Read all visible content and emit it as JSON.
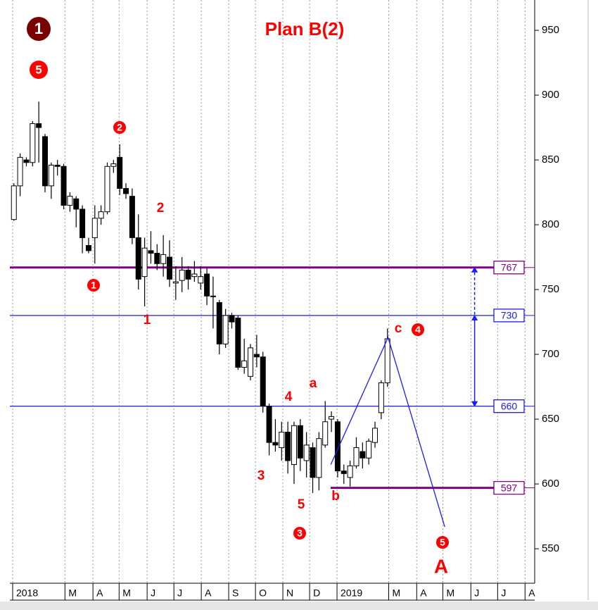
{
  "chart_data": {
    "type": "candlestick",
    "title": "Plan B(2)",
    "candles": {
      "open": [
        804,
        830,
        850,
        848,
        878,
        868,
        830,
        846,
        845,
        815,
        820,
        812,
        784,
        790,
        805,
        810,
        845,
        852,
        828,
        822,
        790,
        760,
        780,
        778,
        770,
        775,
        755,
        757,
        765,
        760,
        755,
        762,
        745,
        740,
        708,
        730,
        728,
        690,
        683,
        700,
        698,
        660,
        632,
        628,
        640,
        615,
        645,
        618,
        628,
        605,
        630,
        650,
        648,
        610,
        605,
        614,
        625,
        620,
        632,
        655,
        678
      ],
      "high": [
        832,
        855,
        852,
        880,
        895,
        870,
        848,
        850,
        847,
        825,
        822,
        815,
        790,
        815,
        815,
        848,
        850,
        862,
        832,
        828,
        808,
        790,
        795,
        785,
        792,
        788,
        768,
        775,
        768,
        772,
        768,
        767,
        760,
        742,
        735,
        732,
        730,
        712,
        708,
        715,
        702,
        662,
        650,
        648,
        648,
        648,
        650,
        640,
        632,
        640,
        664,
        656,
        650,
        615,
        618,
        636,
        632,
        635,
        648,
        680,
        720
      ],
      "low": [
        803,
        822,
        845,
        845,
        848,
        825,
        820,
        838,
        812,
        810,
        798,
        778,
        778,
        770,
        800,
        808,
        840,
        823,
        820,
        785,
        750,
        737,
        770,
        765,
        760,
        752,
        742,
        748,
        750,
        756,
        750,
        738,
        720,
        700,
        705,
        720,
        688,
        685,
        680,
        690,
        655,
        622,
        625,
        618,
        608,
        600,
        610,
        605,
        593,
        595,
        628,
        640,
        605,
        600,
        598,
        612,
        612,
        615,
        628,
        650,
        675
      ],
      "close": [
        830,
        852,
        848,
        878,
        875,
        830,
        846,
        845,
        815,
        822,
        812,
        790,
        780,
        805,
        810,
        845,
        847,
        828,
        824,
        790,
        758,
        782,
        778,
        770,
        777,
        758,
        756,
        765,
        758,
        762,
        760,
        745,
        745,
        708,
        730,
        725,
        690,
        695,
        705,
        698,
        660,
        632,
        630,
        640,
        618,
        645,
        620,
        630,
        605,
        635,
        648,
        652,
        610,
        608,
        614,
        628,
        620,
        633,
        643,
        678,
        712
      ]
    },
    "ylim": [
      523.4,
      973.4
    ],
    "yticks": [
      550,
      600,
      650,
      700,
      750,
      800,
      850,
      900,
      950
    ],
    "xlim": [
      -0.45,
      83.85
    ],
    "xticks": [
      {
        "value": 0,
        "label": "2018"
      },
      {
        "value": 8.4,
        "label": "M"
      },
      {
        "value": 12.9,
        "label": "A"
      },
      {
        "value": 17.1,
        "label": "M"
      },
      {
        "value": 21.6,
        "label": "J"
      },
      {
        "value": 25.9,
        "label": "J"
      },
      {
        "value": 30.3,
        "label": "A"
      },
      {
        "value": 34.7,
        "label": "S"
      },
      {
        "value": 39,
        "label": "O"
      },
      {
        "value": 43.4,
        "label": "N"
      },
      {
        "value": 47.7,
        "label": "D"
      },
      {
        "value": 52.1,
        "label": "2019"
      },
      {
        "value": 60.4,
        "label": "M"
      },
      {
        "value": 64.9,
        "label": "A"
      },
      {
        "value": 69.1,
        "label": "M"
      },
      {
        "value": 73.6,
        "label": "J"
      },
      {
        "value": 77.9,
        "label": "J"
      },
      {
        "value": 82.3,
        "label": "A"
      }
    ],
    "levels": [
      {
        "value": 767,
        "color": "#800080"
      },
      {
        "value": 730,
        "color": "#1a1aff"
      },
      {
        "value": 660,
        "color": "#1a1aff"
      },
      {
        "value": 597,
        "color": "#800080"
      }
    ],
    "wave": {
      "x": [
        51.1,
        60.3,
        69.4
      ],
      "y": [
        615,
        713,
        567
      ],
      "color": "#1a1aff"
    },
    "arrow": {
      "x": 74.2,
      "y": [
        767,
        730,
        660
      ],
      "color": "#1a1aff"
    },
    "annotations": [
      "1",
      "5",
      "2",
      "2",
      "1",
      "1",
      "3",
      "4",
      "a",
      "5",
      "3",
      "b",
      "c",
      "4",
      "5",
      "A"
    ]
  }
}
